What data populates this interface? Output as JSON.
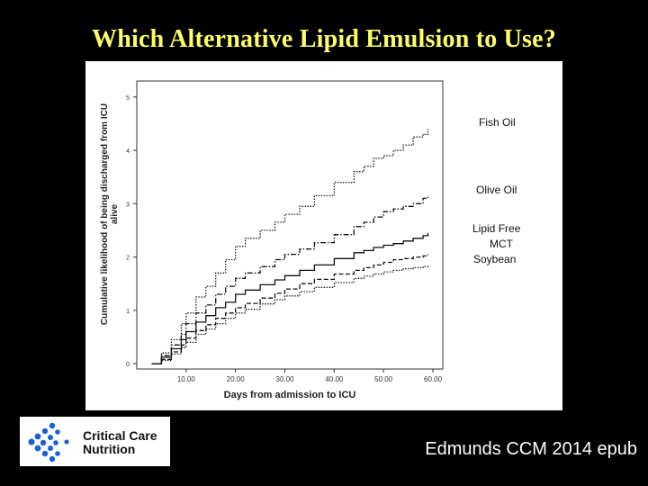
{
  "slide": {
    "title": "Which Alternative Lipid Emulsion to Use?",
    "citation": "Edmunds CCM 2014 epub"
  },
  "logo": {
    "line1": "Critical Care",
    "line2": "Nutrition",
    "accent_color": "#1a5fd6"
  },
  "legend": {
    "fish_oil": "Fish Oil",
    "olive_oil": "Olive Oil",
    "lipid_free": "Lipid Free",
    "mct": "MCT",
    "soybean": "Soybean"
  },
  "chart_data": {
    "type": "line",
    "title": "",
    "xlabel": "Days from admission to ICU",
    "ylabel": "Cumulative likelihood of being discharged from ICU alive",
    "x_tick_labels": [
      "10.00",
      "20.00",
      "30.00",
      "40.00",
      "50.00",
      "60.00"
    ],
    "y_tick_labels": [
      "0",
      "1",
      "2",
      "3",
      "4",
      "5"
    ],
    "x_ticks": [
      10,
      20,
      30,
      40,
      50,
      60
    ],
    "y_ticks": [
      0,
      1,
      2,
      3,
      4,
      5
    ],
    "xlim": [
      0,
      62
    ],
    "ylim": [
      -0.1,
      5.3
    ],
    "grid": false,
    "legend_position": "right",
    "series": [
      {
        "name": "Fish Oil",
        "style": "dotted",
        "x": [
          3,
          5,
          7,
          9,
          10,
          12,
          14,
          16,
          18,
          20,
          22,
          25,
          28,
          30,
          33,
          36,
          40,
          44,
          46,
          48,
          50,
          52,
          54,
          56,
          58,
          59
        ],
        "y": [
          0,
          0.2,
          0.45,
          0.75,
          0.95,
          1.25,
          1.45,
          1.7,
          1.95,
          2.2,
          2.35,
          2.5,
          2.65,
          2.8,
          2.95,
          3.15,
          3.4,
          3.6,
          3.7,
          3.85,
          3.9,
          4.0,
          4.1,
          4.25,
          4.3,
          4.4
        ]
      },
      {
        "name": "Olive Oil",
        "style": "dashdot",
        "x": [
          3,
          5,
          7,
          9,
          10,
          12,
          14,
          16,
          18,
          20,
          22,
          25,
          28,
          30,
          33,
          36,
          40,
          44,
          46,
          48,
          50,
          52,
          54,
          56,
          58,
          59
        ],
        "y": [
          0,
          0.15,
          0.35,
          0.55,
          0.75,
          0.95,
          1.1,
          1.3,
          1.45,
          1.6,
          1.7,
          1.82,
          1.95,
          2.05,
          2.15,
          2.27,
          2.42,
          2.57,
          2.65,
          2.75,
          2.85,
          2.9,
          2.95,
          3.0,
          3.1,
          3.15
        ]
      },
      {
        "name": "Lipid Free",
        "style": "solid",
        "x": [
          3,
          5,
          7,
          9,
          10,
          12,
          14,
          16,
          18,
          20,
          22,
          25,
          28,
          30,
          33,
          36,
          40,
          44,
          46,
          48,
          50,
          52,
          54,
          56,
          58,
          59
        ],
        "y": [
          0,
          0.12,
          0.28,
          0.45,
          0.6,
          0.78,
          0.9,
          1.05,
          1.15,
          1.3,
          1.38,
          1.48,
          1.57,
          1.65,
          1.75,
          1.85,
          1.97,
          2.08,
          2.12,
          2.18,
          2.22,
          2.25,
          2.3,
          2.35,
          2.4,
          2.45
        ]
      },
      {
        "name": "MCT",
        "style": "dashed",
        "x": [
          3,
          5,
          7,
          9,
          10,
          12,
          14,
          16,
          18,
          20,
          22,
          25,
          28,
          30,
          33,
          36,
          40,
          44,
          46,
          48,
          50,
          52,
          54,
          56,
          58,
          59
        ],
        "y": [
          0,
          0.08,
          0.22,
          0.35,
          0.48,
          0.62,
          0.73,
          0.85,
          0.95,
          1.05,
          1.13,
          1.23,
          1.32,
          1.4,
          1.5,
          1.58,
          1.68,
          1.75,
          1.8,
          1.85,
          1.9,
          1.95,
          1.97,
          2.0,
          2.02,
          2.05
        ]
      },
      {
        "name": "Soybean",
        "style": "dotted",
        "x": [
          3,
          5,
          7,
          9,
          10,
          12,
          14,
          16,
          18,
          20,
          22,
          25,
          28,
          30,
          33,
          36,
          40,
          44,
          46,
          48,
          50,
          52,
          54,
          56,
          58,
          59
        ],
        "y": [
          0,
          0.06,
          0.18,
          0.3,
          0.4,
          0.55,
          0.65,
          0.75,
          0.85,
          0.95,
          1.02,
          1.12,
          1.2,
          1.27,
          1.35,
          1.43,
          1.52,
          1.6,
          1.64,
          1.68,
          1.72,
          1.75,
          1.78,
          1.8,
          1.82,
          1.85
        ]
      }
    ]
  }
}
